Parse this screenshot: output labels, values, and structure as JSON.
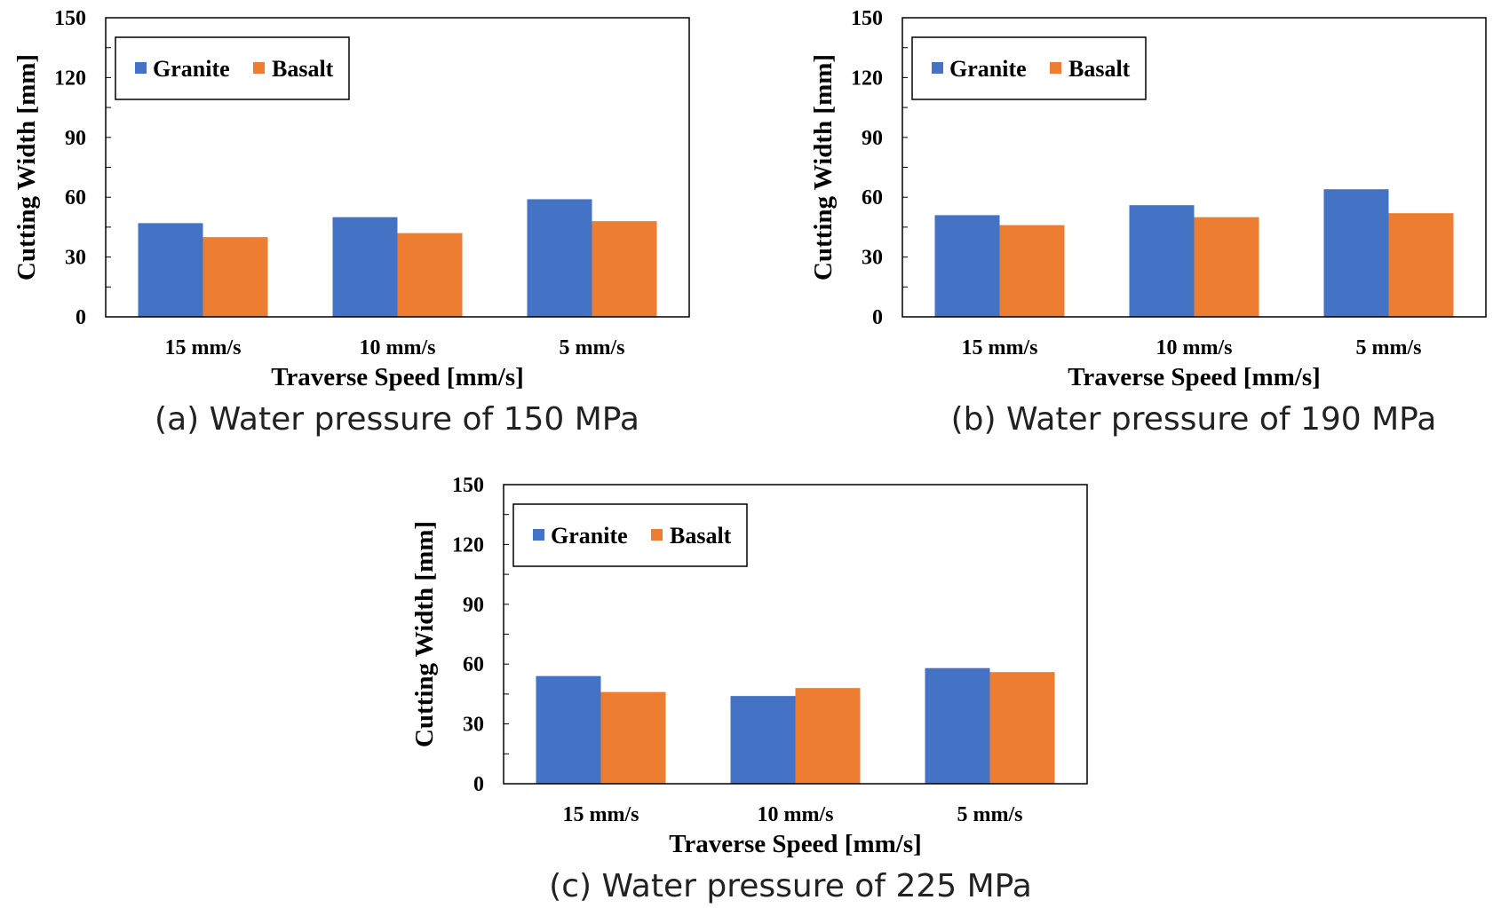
{
  "colors": {
    "granite": "#4472C4",
    "basalt": "#ED7D31",
    "axis": "#000000",
    "tick_minor": "#000000"
  },
  "chart_data": [
    {
      "type": "bar",
      "caption": "(a) Water pressure of 150 MPa",
      "categories": [
        "15 mm/s",
        "10 mm/s",
        "5 mm/s"
      ],
      "series": [
        {
          "name": "Granite",
          "values": [
            47,
            50,
            59
          ]
        },
        {
          "name": "Basalt",
          "values": [
            40,
            42,
            48
          ]
        }
      ],
      "xlabel": "Traverse Speed [mm/s]",
      "ylabel": "Cutting Width [mm]",
      "ylim": [
        0,
        150
      ],
      "yticks": [
        0,
        30,
        60,
        90,
        120,
        150
      ],
      "legend": "top-left",
      "grid": false
    },
    {
      "type": "bar",
      "caption": "(b) Water pressure of 190 MPa",
      "categories": [
        "15 mm/s",
        "10 mm/s",
        "5 mm/s"
      ],
      "series": [
        {
          "name": "Granite",
          "values": [
            51,
            56,
            64
          ]
        },
        {
          "name": "Basalt",
          "values": [
            46,
            50,
            52
          ]
        }
      ],
      "xlabel": "Traverse Speed [mm/s]",
      "ylabel": "Cutting Width [mm]",
      "ylim": [
        0,
        150
      ],
      "yticks": [
        0,
        30,
        60,
        90,
        120,
        150
      ],
      "legend": "top-left",
      "grid": false
    },
    {
      "type": "bar",
      "caption": "(c) Water pressure of 225 MPa",
      "categories": [
        "15 mm/s",
        "10 mm/s",
        "5 mm/s"
      ],
      "series": [
        {
          "name": "Granite",
          "values": [
            54,
            44,
            58
          ]
        },
        {
          "name": "Basalt",
          "values": [
            46,
            48,
            56
          ]
        }
      ],
      "xlabel": "Traverse Speed [mm/s]",
      "ylabel": "Cutting Width [mm]",
      "ylim": [
        0,
        150
      ],
      "yticks": [
        0,
        30,
        60,
        90,
        120,
        150
      ],
      "legend": "top-left",
      "grid": false
    }
  ]
}
